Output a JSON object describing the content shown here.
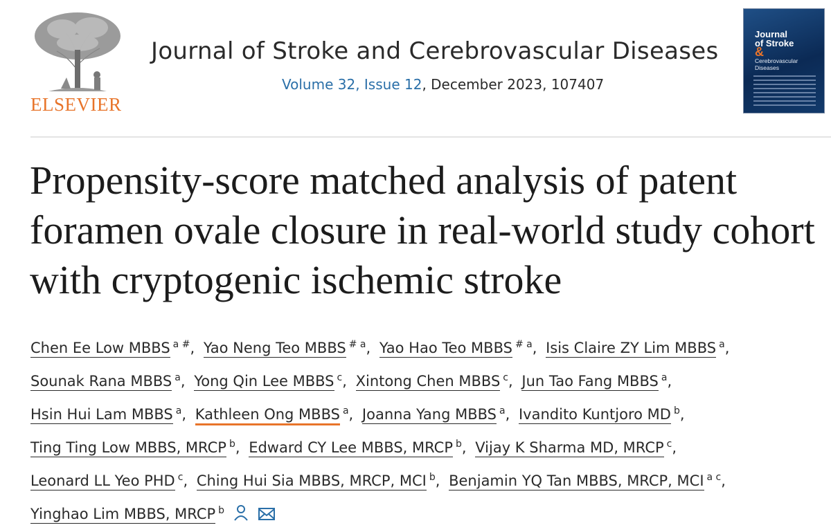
{
  "header": {
    "publisher_name": "ELSEVIER",
    "journal_title": "Journal of Stroke and Cerebrovascular Diseases",
    "volume_issue_link": "Volume 32, Issue 12",
    "issue_rest": ", December 2023, 107407",
    "cover": {
      "title_line1": "Journal",
      "title_line2": "of Stroke",
      "amp": "&",
      "subtitle": "Cerebrovascular Diseases"
    }
  },
  "article": {
    "title": "Propensity-score matched analysis of patent foramen ovale closure in real-world study cohort with cryptogenic ischemic stroke"
  },
  "authors": [
    {
      "name": "Chen Ee Low MBBS",
      "aff": "a #"
    },
    {
      "name": "Yao Neng Teo MBBS",
      "aff": "# a"
    },
    {
      "name": "Yao Hao Teo MBBS",
      "aff": "# a"
    },
    {
      "name": "Isis Claire ZY Lim MBBS",
      "aff": "a"
    },
    {
      "name": "Sounak Rana MBBS",
      "aff": "a"
    },
    {
      "name": "Yong Qin Lee MBBS",
      "aff": "c"
    },
    {
      "name": "Xintong Chen MBBS",
      "aff": "c"
    },
    {
      "name": "Jun Tao Fang MBBS",
      "aff": "a"
    },
    {
      "name": "Hsin Hui Lam MBBS",
      "aff": "a"
    },
    {
      "name": "Kathleen Ong MBBS",
      "aff": "a"
    },
    {
      "name": "Joanna Yang MBBS",
      "aff": "a"
    },
    {
      "name": "Ivandito Kuntjoro MD",
      "aff": "b"
    },
    {
      "name": "Ting Ting Low MBBS, MRCP",
      "aff": "b"
    },
    {
      "name": "Edward CY Lee MBBS, MRCP",
      "aff": "b"
    },
    {
      "name": "Vijay K Sharma MD, MRCP",
      "aff": "c"
    },
    {
      "name": "Leonard LL Yeo PHD",
      "aff": "c"
    },
    {
      "name": "Ching Hui Sia MBBS, MRCP, MCI",
      "aff": "b"
    },
    {
      "name": "Benjamin YQ Tan MBBS, MRCP, MCI",
      "aff": "a c"
    },
    {
      "name": "Yinghao Lim MBBS, MRCP",
      "aff": "b"
    }
  ],
  "colors": {
    "elsevier_orange": "#e8742a",
    "link_blue": "#2a6fa8",
    "cover_blue": "#0b2a55"
  },
  "icons": {
    "person": "person-icon",
    "mail": "mail-icon"
  }
}
